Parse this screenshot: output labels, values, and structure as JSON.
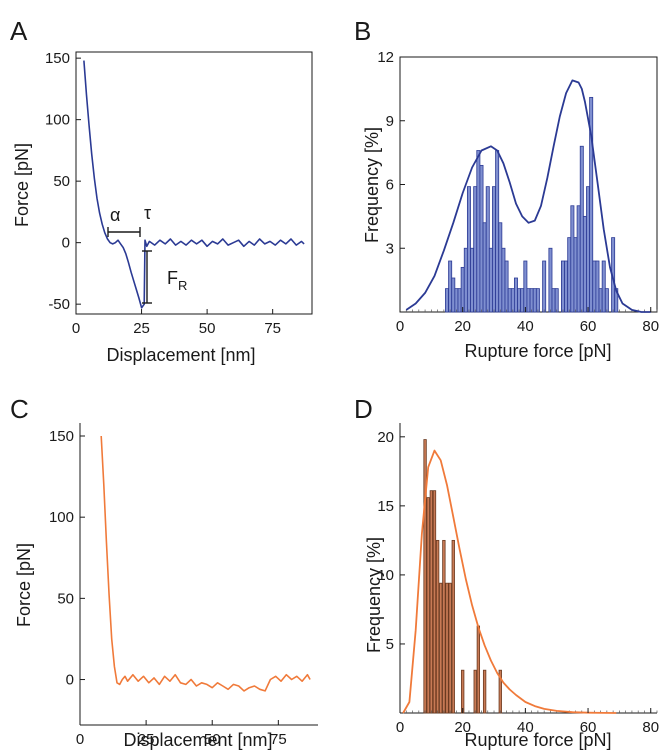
{
  "colors": {
    "blue": "#2b3a94",
    "bar_fill": "#7f8fd0",
    "orange": "#f07a3a",
    "bar_fill_orange": "#c87a55",
    "axis": "#1a1a1a"
  },
  "chart_data": [
    {
      "panel": "A",
      "type": "line",
      "xlabel": "Displacement [nm]",
      "ylabel": "Force [pN]",
      "xlim": [
        0,
        90
      ],
      "ylim": [
        -58,
        155
      ],
      "xticks": [
        0,
        25,
        50,
        75
      ],
      "yticks": [
        -50,
        0,
        50,
        100,
        150
      ],
      "series": [
        {
          "x": [
            3,
            4,
            5,
            6,
            7,
            8,
            9,
            10,
            11,
            12,
            13,
            14,
            15,
            16,
            17,
            18,
            19,
            20,
            21,
            22,
            23,
            24,
            25,
            26,
            26.3,
            27,
            28,
            30,
            32,
            34,
            36,
            38,
            40,
            42,
            44,
            46,
            48,
            50,
            52,
            54,
            56,
            58,
            60,
            62,
            64,
            66,
            68,
            70,
            72,
            74,
            76,
            78,
            80,
            82,
            84,
            86,
            87
          ],
          "y": [
            148,
            120,
            95,
            72,
            52,
            36,
            24,
            15,
            8,
            3,
            0,
            -1,
            0,
            2,
            -1,
            -4,
            -9,
            -16,
            -24,
            -31,
            -38,
            -45,
            -53,
            -50,
            2,
            -3,
            1,
            -2,
            2,
            -1,
            3,
            -2,
            1,
            -2,
            2,
            -1,
            2,
            -3,
            1,
            -1,
            3,
            -2,
            0,
            2,
            -3,
            1,
            -2,
            3,
            -1,
            1,
            -2,
            2,
            -1,
            3,
            -2,
            1,
            -1
          ]
        }
      ],
      "annotations": {
        "alpha": "α",
        "tau": "τ",
        "rupture_base": "F",
        "rupture_sub": "R"
      }
    },
    {
      "panel": "B",
      "type": "bar",
      "xlabel": "Rupture force [pN]",
      "ylabel": "Frequency [%]",
      "xlim": [
        0,
        82
      ],
      "ylim": [
        0,
        12
      ],
      "xticks": [
        0,
        20,
        40,
        60,
        80
      ],
      "yticks": [
        3,
        6,
        9,
        12
      ],
      "bin_width": 1,
      "bars": [
        [
          15,
          1.1
        ],
        [
          16,
          2.4
        ],
        [
          17,
          1.6
        ],
        [
          18,
          1.1
        ],
        [
          19,
          1.1
        ],
        [
          20,
          2.1
        ],
        [
          21,
          3.0
        ],
        [
          22,
          5.9
        ],
        [
          23,
          3.0
        ],
        [
          24,
          5.9
        ],
        [
          25,
          7.6
        ],
        [
          26,
          6.9
        ],
        [
          27,
          4.2
        ],
        [
          28,
          5.9
        ],
        [
          29,
          3.0
        ],
        [
          30,
          5.9
        ],
        [
          31,
          7.6
        ],
        [
          32,
          4.2
        ],
        [
          33,
          3.0
        ],
        [
          34,
          2.4
        ],
        [
          35,
          1.1
        ],
        [
          36,
          1.1
        ],
        [
          37,
          1.6
        ],
        [
          38,
          1.1
        ],
        [
          39,
          1.1
        ],
        [
          40,
          2.4
        ],
        [
          41,
          1.1
        ],
        [
          42,
          1.1
        ],
        [
          43,
          1.1
        ],
        [
          44,
          1.1
        ],
        [
          46,
          2.4
        ],
        [
          48,
          3.0
        ],
        [
          49,
          1.1
        ],
        [
          50,
          1.1
        ],
        [
          52,
          2.4
        ],
        [
          53,
          2.4
        ],
        [
          54,
          3.5
        ],
        [
          55,
          5.0
        ],
        [
          56,
          3.5
        ],
        [
          57,
          5.0
        ],
        [
          58,
          7.8
        ],
        [
          59,
          4.5
        ],
        [
          60,
          5.9
        ],
        [
          61,
          10.1
        ],
        [
          62,
          2.4
        ],
        [
          63,
          2.4
        ],
        [
          64,
          1.1
        ],
        [
          65,
          2.4
        ],
        [
          66,
          1.1
        ],
        [
          68,
          3.5
        ],
        [
          69,
          1.1
        ]
      ],
      "fit": {
        "x": [
          2,
          5,
          8,
          11,
          14,
          17,
          20,
          23,
          26,
          29,
          31,
          33,
          35,
          37,
          39,
          41,
          43,
          45,
          47,
          49,
          51,
          53,
          55,
          57,
          58,
          59,
          61,
          63,
          65,
          67,
          69,
          71,
          74,
          77,
          80
        ],
        "y": [
          0.1,
          0.4,
          0.9,
          1.7,
          2.9,
          4.2,
          5.6,
          6.8,
          7.6,
          7.8,
          7.6,
          7.0,
          6.1,
          5.1,
          4.5,
          4.2,
          4.3,
          5.0,
          6.3,
          7.8,
          9.2,
          10.3,
          10.9,
          10.8,
          10.5,
          9.9,
          8.3,
          6.1,
          3.9,
          2.1,
          1.0,
          0.4,
          0.1,
          0.0,
          0.0
        ]
      }
    },
    {
      "panel": "C",
      "type": "line",
      "xlabel": "Displacement [nm]",
      "ylabel": "Force [pN]",
      "xlim": [
        0,
        90
      ],
      "ylim": [
        -28,
        158
      ],
      "xticks": [
        0,
        25,
        50,
        75
      ],
      "yticks": [
        0,
        50,
        100,
        150
      ],
      "series": [
        {
          "x": [
            8,
            9,
            10,
            11,
            12,
            13,
            14,
            15,
            16,
            17,
            18,
            20,
            22,
            24,
            26,
            28,
            30,
            32,
            34,
            36,
            38,
            40,
            42,
            44,
            46,
            48,
            50,
            52,
            54,
            56,
            58,
            60,
            62,
            64,
            66,
            68,
            70,
            72,
            74,
            76,
            78,
            80,
            82,
            84,
            86,
            87
          ],
          "y": [
            150,
            120,
            85,
            52,
            25,
            8,
            -2,
            -3,
            0,
            2,
            -1,
            3,
            -1,
            2,
            -2,
            1,
            -3,
            2,
            -1,
            3,
            -2,
            -3,
            0,
            -4,
            -2,
            -3,
            -5,
            -2,
            -4,
            -6,
            -3,
            -4,
            -7,
            -5,
            -4,
            -6,
            -7,
            0,
            2,
            -1,
            3,
            0,
            2,
            -1,
            3,
            0
          ]
        }
      ]
    },
    {
      "panel": "D",
      "type": "bar",
      "xlabel": "Rupture force [pN]",
      "ylabel": "Frequency [%]",
      "xlim": [
        0,
        82
      ],
      "ylim": [
        0,
        21
      ],
      "xticks": [
        0,
        20,
        40,
        60,
        80
      ],
      "yticks": [
        5,
        10,
        15,
        20
      ],
      "bin_width": 0.8,
      "bars": [
        [
          8,
          19.8
        ],
        [
          9,
          15.6
        ],
        [
          10,
          16.1
        ],
        [
          11,
          16.1
        ],
        [
          12,
          12.5
        ],
        [
          13,
          9.4
        ],
        [
          14,
          12.5
        ],
        [
          15,
          9.4
        ],
        [
          16,
          9.4
        ],
        [
          17,
          12.5
        ],
        [
          20,
          3.1
        ],
        [
          24,
          3.1
        ],
        [
          25,
          6.3
        ],
        [
          27,
          3.1
        ],
        [
          32,
          3.1
        ]
      ],
      "fit": {
        "x": [
          1,
          3,
          5,
          7,
          9,
          11,
          13,
          15,
          17,
          19,
          21,
          23,
          25,
          27,
          29,
          31,
          33,
          35,
          37,
          40,
          43,
          46,
          50,
          55,
          60,
          65,
          69
        ],
        "y": [
          0.0,
          0.8,
          6.0,
          13.0,
          17.8,
          19.0,
          18.3,
          16.5,
          14.2,
          11.9,
          9.7,
          7.8,
          6.2,
          4.9,
          3.8,
          2.9,
          2.2,
          1.7,
          1.3,
          0.8,
          0.5,
          0.3,
          0.15,
          0.06,
          0.02,
          0.01,
          0.0
        ]
      }
    }
  ]
}
